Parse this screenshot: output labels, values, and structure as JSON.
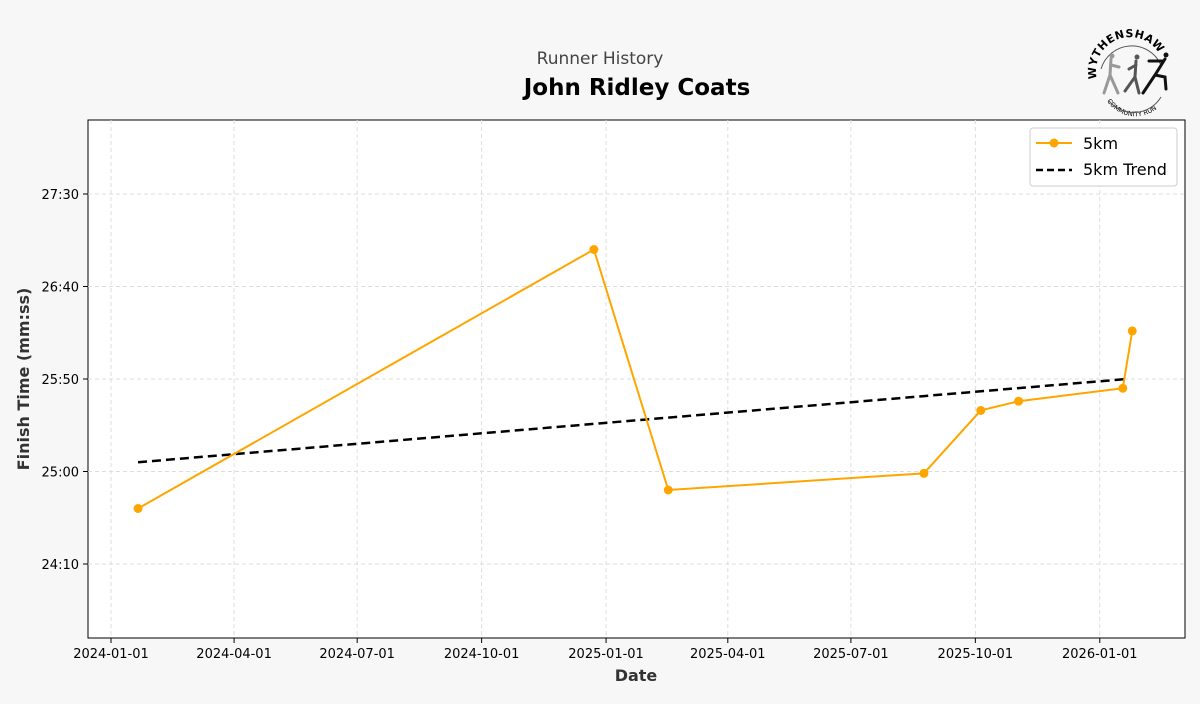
{
  "chart_data": {
    "type": "line",
    "subtitle": "Runner History",
    "title": "John Ridley Coats",
    "xlabel": "Date",
    "ylabel": "Finish Time (mm:ss)",
    "x_ticks": [
      "2024-01-01",
      "2024-04-01",
      "2024-07-01",
      "2024-10-01",
      "2025-01-01",
      "2025-04-01",
      "2025-07-01",
      "2025-10-01",
      "2026-01-01"
    ],
    "y_ticks": [
      "24:10",
      "25:00",
      "25:50",
      "26:40",
      "27:30"
    ],
    "xlim": [
      "2023-12-15",
      "2026-03-05"
    ],
    "ylim_seconds": [
      1410,
      1690
    ],
    "grid": true,
    "legend_position": "top-right",
    "series": [
      {
        "name": "5km",
        "color": "#ffa500",
        "style": "solid-marker",
        "x": [
          "2024-01-21",
          "2024-12-23",
          "2025-02-16",
          "2025-08-24",
          "2025-10-05",
          "2025-11-02",
          "2026-01-18",
          "2026-01-25"
        ],
        "y": [
          "24:40",
          "27:00",
          "24:50",
          "24:59",
          "25:33",
          "25:38",
          "25:45",
          "26:16"
        ]
      },
      {
        "name": "5km Trend",
        "color": "#000000",
        "style": "dashed",
        "x": [
          "2024-01-21",
          "2026-01-21"
        ],
        "y": [
          "25:05",
          "25:50"
        ]
      }
    ]
  },
  "logo": {
    "top_text": "WYTHENSHAWE",
    "bottom_text": "COMMUNITY RUN"
  }
}
